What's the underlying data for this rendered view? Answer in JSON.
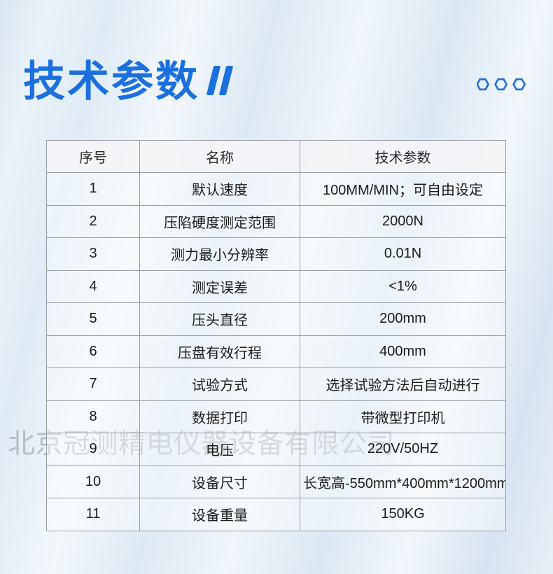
{
  "header": {
    "title": "技术参数"
  },
  "icons": {
    "quote": "double-quote-mark",
    "hexagons": "three-outlined-hexagons"
  },
  "colors": {
    "accent": "#1b70de",
    "table_border": "#969da4",
    "header_row_bg": "#f3f4f6",
    "watermark": "#9aa1a9",
    "text": "#1b1b1b"
  },
  "watermark": {
    "text": "北京冠测精电仪器设备有限公司"
  },
  "table": {
    "headers": [
      "序号",
      "名称",
      "技术参数"
    ],
    "rows": [
      [
        "1",
        "默认速度",
        "100MM/MIN；可自由设定"
      ],
      [
        "2",
        "压陷硬度测定范围",
        "2000N"
      ],
      [
        "3",
        "测力最小分辨率",
        "0.01N"
      ],
      [
        "4",
        "测定误差",
        "<1%"
      ],
      [
        "5",
        "压头直径",
        "200mm"
      ],
      [
        "6",
        "压盘有效行程",
        "400mm"
      ],
      [
        "7",
        "试验方式",
        "选择试验方法后自动进行"
      ],
      [
        "8",
        "数据打印",
        "带微型打印机"
      ],
      [
        "9",
        "电压",
        "220V/50HZ"
      ],
      [
        "10",
        "设备尺寸",
        "长宽高-550mm*400mm*1200mm"
      ],
      [
        "11",
        "设备重量",
        "150KG"
      ]
    ]
  }
}
